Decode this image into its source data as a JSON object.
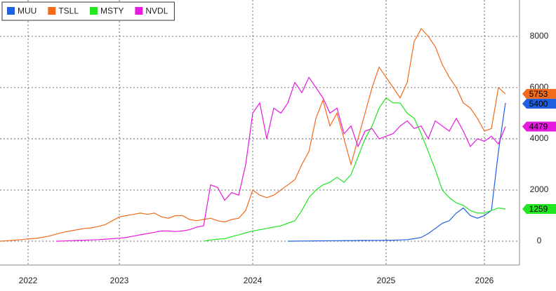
{
  "chart_data": {
    "type": "line",
    "categories": [
      null,
      null,
      null,
      null,
      "2022",
      null,
      null,
      null,
      null,
      null,
      null,
      null,
      null,
      null,
      null,
      null,
      null,
      "2023",
      null,
      null,
      null,
      null,
      null,
      null,
      null,
      null,
      null,
      null,
      null,
      null,
      null,
      null,
      null,
      null,
      null,
      null,
      "2024",
      null,
      null,
      null,
      null,
      null,
      null,
      null,
      null,
      null,
      null,
      null,
      null,
      null,
      null,
      null,
      null,
      null,
      null,
      "2025",
      null,
      null,
      null,
      null,
      null,
      null,
      null,
      null,
      null,
      null,
      null,
      null,
      null,
      "2026",
      null,
      null,
      null
    ],
    "series": [
      {
        "name": "MUU",
        "color": "#1f5fe0",
        "values": [
          null,
          null,
          null,
          null,
          null,
          null,
          null,
          null,
          null,
          null,
          null,
          null,
          null,
          null,
          null,
          null,
          null,
          null,
          null,
          null,
          null,
          null,
          null,
          null,
          null,
          null,
          null,
          null,
          null,
          null,
          null,
          null,
          null,
          null,
          null,
          null,
          null,
          null,
          null,
          null,
          null,
          0,
          5,
          10,
          10,
          15,
          15,
          20,
          20,
          25,
          25,
          30,
          30,
          35,
          35,
          40,
          40,
          50,
          60,
          100,
          150,
          300,
          500,
          700,
          800,
          1100,
          1300,
          1000,
          900,
          1000,
          1200,
          3500,
          5400
        ]
      },
      {
        "name": "TSLL",
        "color": "#f26b1d",
        "values": [
          0,
          20,
          40,
          60,
          90,
          110,
          150,
          200,
          280,
          350,
          400,
          450,
          500,
          520,
          580,
          650,
          800,
          950,
          1000,
          1050,
          1100,
          1050,
          1100,
          950,
          900,
          1000,
          1000,
          850,
          800,
          850,
          900,
          800,
          750,
          850,
          900,
          1200,
          2000,
          1800,
          1700,
          1800,
          2000,
          2200,
          2400,
          3000,
          3500,
          4800,
          5500,
          4500,
          5000,
          4000,
          3000,
          4000,
          5000,
          6000,
          6800,
          6400,
          6000,
          5600,
          6200,
          7800,
          8300,
          8000,
          7600,
          6900,
          6400,
          6000,
          5400,
          5200,
          4800,
          4300,
          4400,
          6000,
          5753
        ]
      },
      {
        "name": "MSTY",
        "color": "#22e61f",
        "values": [
          null,
          null,
          null,
          null,
          null,
          null,
          null,
          null,
          null,
          null,
          null,
          null,
          null,
          null,
          null,
          null,
          null,
          null,
          null,
          null,
          null,
          null,
          null,
          null,
          null,
          null,
          null,
          null,
          null,
          0,
          50,
          80,
          100,
          180,
          250,
          330,
          400,
          450,
          500,
          550,
          600,
          700,
          800,
          1200,
          1700,
          2000,
          2200,
          2300,
          2500,
          2300,
          2600,
          3300,
          4000,
          4500,
          5200,
          5600,
          5400,
          5400,
          5000,
          4800,
          4200,
          3500,
          2800,
          2000,
          1700,
          1500,
          1400,
          1200,
          1100,
          1100,
          1200,
          1300,
          1259
        ]
      },
      {
        "name": "NVDL",
        "color": "#e619e0",
        "values": [
          null,
          null,
          null,
          null,
          null,
          null,
          null,
          null,
          0,
          10,
          20,
          30,
          40,
          50,
          60,
          80,
          100,
          120,
          150,
          200,
          250,
          300,
          350,
          400,
          400,
          380,
          400,
          450,
          550,
          600,
          2200,
          2100,
          1600,
          1900,
          1800,
          3000,
          5000,
          5400,
          4000,
          5200,
          5000,
          5400,
          6200,
          5800,
          6400,
          6000,
          5600,
          5000,
          5200,
          4200,
          4500,
          3700,
          4300,
          4400,
          4000,
          4100,
          4200,
          4500,
          4700,
          4400,
          4500,
          4000,
          4700,
          4500,
          4300,
          4800,
          4300,
          3700,
          4000,
          3900,
          4100,
          3800,
          4479
        ]
      }
    ],
    "ylim": [
      -930,
      9420
    ],
    "yticks": [
      0,
      2000,
      4000,
      6000,
      8000
    ],
    "grid": true,
    "legend": "top-left"
  }
}
